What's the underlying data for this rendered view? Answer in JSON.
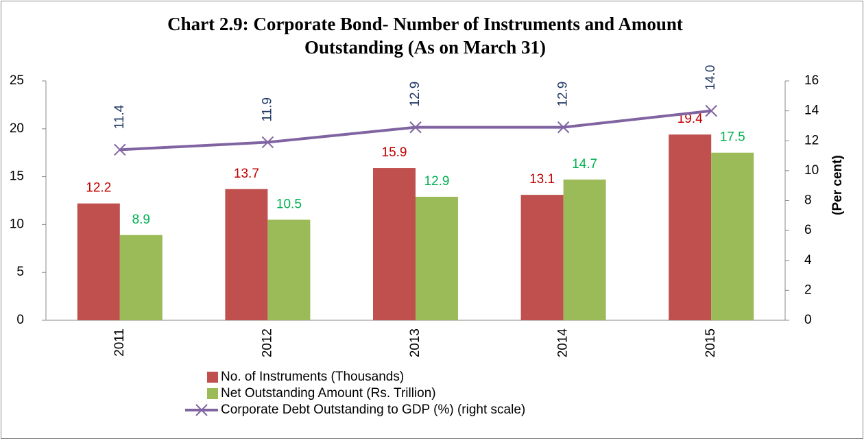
{
  "chart_data": {
    "type": "bar",
    "title": [
      "Chart 2.9: Corporate Bond- Number of Instruments and Amount",
      "Outstanding (As on March 31)"
    ],
    "y2label": "(Per cent)",
    "categories": [
      "2011",
      "2012",
      "2013",
      "2014",
      "2015"
    ],
    "series": [
      {
        "name": "No. of Instruments (Thousands)",
        "type": "bar",
        "color": "#c0504d",
        "label_color": "#c00000",
        "values": [
          12.2,
          13.7,
          15.9,
          13.1,
          19.4
        ]
      },
      {
        "name": "Net Outstanding Amount (Rs. Trillion)",
        "type": "bar",
        "color": "#9bbb59",
        "label_color": "#00b050",
        "values": [
          8.9,
          10.5,
          12.9,
          14.7,
          17.5
        ]
      },
      {
        "name": "Corporate Debt Outstanding to GDP (%) (right scale)",
        "type": "line",
        "axis": "y2",
        "color": "#8064a2",
        "label_color": "#1f3864",
        "values": [
          11.4,
          11.9,
          12.9,
          12.9,
          14
        ],
        "value_labels": [
          "11.4",
          "11.9",
          "12.9",
          "12.9",
          "14.0"
        ]
      }
    ],
    "ylim": [
      0,
      25
    ],
    "yticks": [
      0,
      5,
      10,
      15,
      20,
      25
    ],
    "y2lim": [
      0,
      16
    ],
    "y2ticks": [
      0,
      2,
      4,
      6,
      8,
      10,
      12,
      14,
      16
    ],
    "legend": "bottom"
  }
}
